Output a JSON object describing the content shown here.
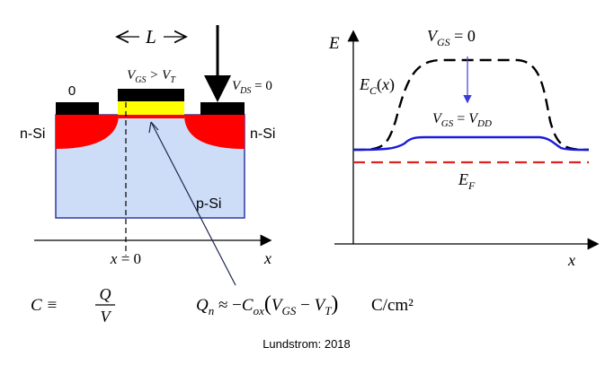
{
  "device": {
    "length_label": "L",
    "gate_label": "V_GS > V_T",
    "source_voltage": "0",
    "drain_voltage_label": "V_DS = 0",
    "n_region_left": "n-Si",
    "n_region_right": "n-Si",
    "substrate_label": "p-Si",
    "position_label": "x = 0",
    "axis_x_label": "x"
  },
  "band_diagram": {
    "energy_axis_label": "E",
    "position_axis_label": "x",
    "conduction_band_label": "E_C(x)",
    "vgs_zero_label": "V_GS = 0",
    "vgs_vdd_label": "V_GS = V_DD",
    "fermi_label": "E_F"
  },
  "equations": {
    "capacitance": "C ≡ Q / V",
    "inversion_charge": "Q_n ≈ −C_ox (V_GS − V_T)",
    "units": "C/cm²"
  },
  "footer": {
    "credit": "Lundstrom: 2018"
  },
  "colors": {
    "n_region": "#ff0000",
    "substrate": "#cddcf7",
    "substrate_border": "#2f3aa0",
    "gate_oxide": "#ffff00",
    "metal": "#000000",
    "band_vdd": "#1a1adc",
    "fermi": "#dd2222",
    "arrow_blue": "#3b3bd8"
  }
}
